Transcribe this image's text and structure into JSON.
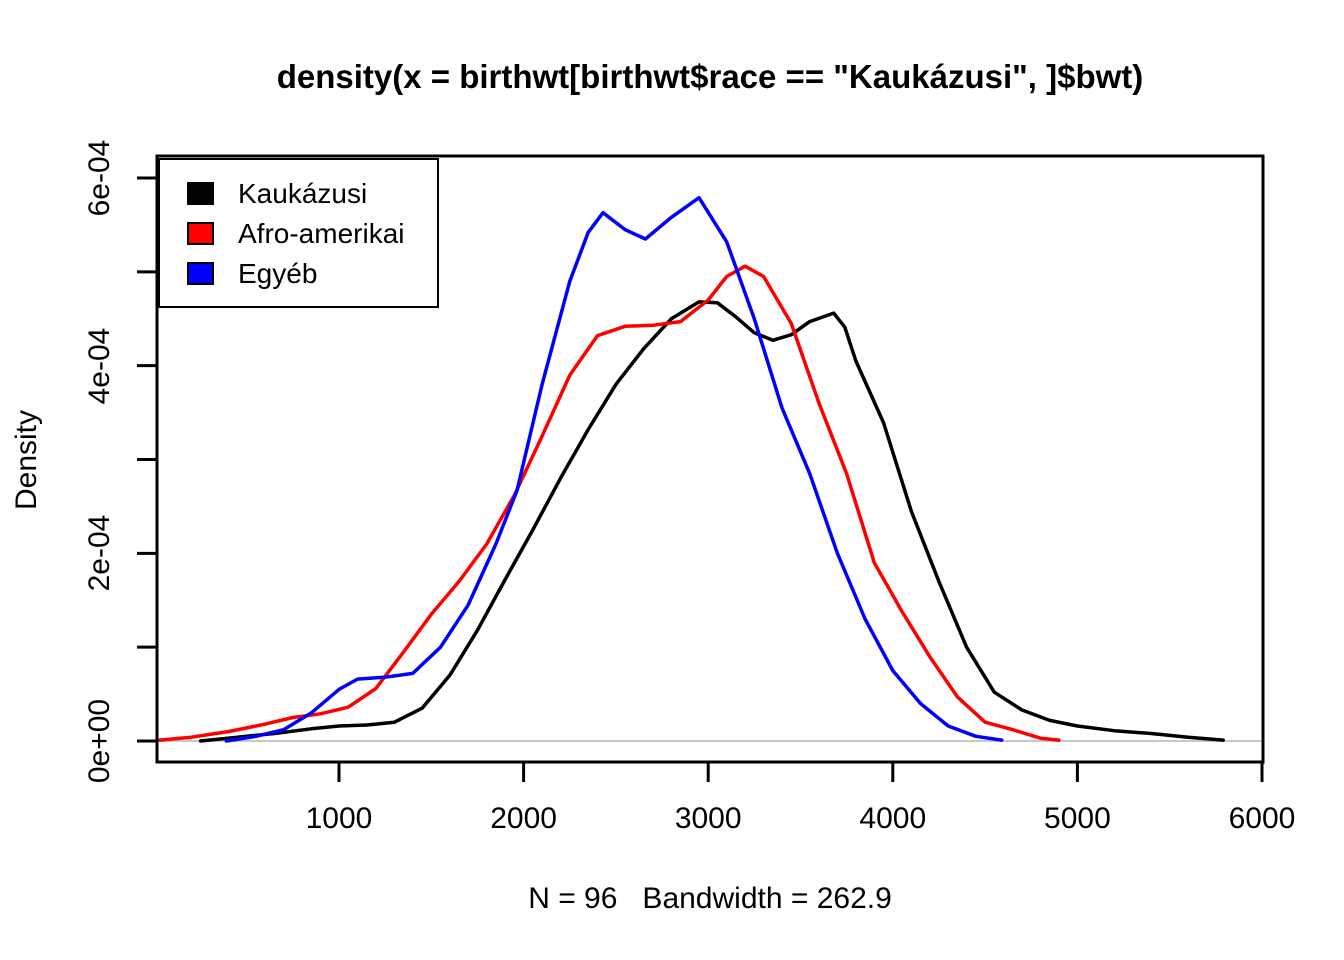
{
  "chart_data": {
    "type": "line",
    "title": "density(x = birthwt[birthwt$race == \"Kaukázusi\", ]$bwt)",
    "xlabel": "N = 96   Bandwidth = 262.9",
    "ylabel": "Density",
    "xlim": [
      14,
      6005
    ],
    "ylim": [
      0,
      0.00062
    ],
    "grid": false,
    "legend_position": "top-left",
    "x_ticks": [
      1000,
      2000,
      3000,
      4000,
      5000,
      6000
    ],
    "y_ticks": [
      {
        "value": 0.0,
        "label": "0e+00"
      },
      {
        "value": 0.0001,
        "label": ""
      },
      {
        "value": 0.0002,
        "label": "2e-04"
      },
      {
        "value": 0.0003,
        "label": ""
      },
      {
        "value": 0.0004,
        "label": "4e-04"
      },
      {
        "value": 0.0005,
        "label": ""
      },
      {
        "value": 0.0006,
        "label": "6e-04"
      }
    ],
    "zero_line_color": "#c8c8c8",
    "axis_color": "#000000",
    "series": [
      {
        "name": "Kaukázusi",
        "color": "#000000",
        "x": [
          250,
          450,
          650,
          850,
          1000,
          1150,
          1300,
          1450,
          1600,
          1750,
          1900,
          2050,
          2200,
          2350,
          2500,
          2650,
          2800,
          2950,
          3050,
          3150,
          3250,
          3350,
          3450,
          3550,
          3680,
          3740,
          3800,
          3950,
          4100,
          4250,
          4400,
          4550,
          4700,
          4850,
          5000,
          5200,
          5400,
          5600,
          5790
        ],
        "y": [
          0.0,
          4e-06,
          8e-06,
          1.3e-05,
          1.6e-05,
          1.7e-05,
          2e-05,
          3.5e-05,
          7e-05,
          0.000118,
          0.000172,
          0.000225,
          0.00028,
          0.000332,
          0.00038,
          0.000418,
          0.00045,
          0.000468,
          0.000467,
          0.000452,
          0.000435,
          0.000427,
          0.000433,
          0.000447,
          0.000456,
          0.000441,
          0.000405,
          0.000339,
          0.000245,
          0.00017,
          0.0001,
          5.2e-05,
          3.3e-05,
          2.2e-05,
          1.6e-05,
          1.1e-05,
          8e-06,
          4e-06,
          1e-06
        ]
      },
      {
        "name": "Afro-amerikai",
        "color": "#ff0000",
        "x": [
          30,
          200,
          400,
          600,
          750,
          900,
          1050,
          1200,
          1350,
          1500,
          1650,
          1800,
          1950,
          2100,
          2250,
          2400,
          2550,
          2700,
          2850,
          3000,
          3100,
          3200,
          3300,
          3450,
          3600,
          3750,
          3900,
          4050,
          4200,
          4350,
          4500,
          4650,
          4800,
          4900
        ],
        "y": [
          1e-06,
          4e-06,
          1e-05,
          1.8e-05,
          2.5e-05,
          2.9e-05,
          3.6e-05,
          5.6e-05,
          9.5e-05,
          0.000135,
          0.00017,
          0.00021,
          0.000262,
          0.000325,
          0.00039,
          0.000432,
          0.000442,
          0.000443,
          0.000447,
          0.00047,
          0.000495,
          0.000506,
          0.000495,
          0.000445,
          0.00036,
          0.000285,
          0.00019,
          0.000138,
          9e-05,
          4.7e-05,
          2e-05,
          1.2e-05,
          3e-06,
          1e-06
        ]
      },
      {
        "name": "Egyéb",
        "color": "#0000ff",
        "x": [
          390,
          550,
          700,
          850,
          1000,
          1100,
          1250,
          1400,
          1550,
          1700,
          1850,
          1964,
          2100,
          2250,
          2350,
          2430,
          2550,
          2660,
          2800,
          2950,
          3100,
          3250,
          3400,
          3550,
          3700,
          3850,
          4000,
          4150,
          4300,
          4450,
          4590
        ],
        "y": [
          0.0,
          5e-06,
          1.2e-05,
          3e-05,
          5.5e-05,
          6.6e-05,
          6.8e-05,
          7.2e-05,
          0.0001,
          0.000145,
          0.00021,
          0.000267,
          0.00038,
          0.00049,
          0.000542,
          0.000563,
          0.000545,
          0.000535,
          0.000558,
          0.000579,
          0.000532,
          0.00045,
          0.000355,
          0.000285,
          0.0002,
          0.00013,
          7.5e-05,
          4e-05,
          1.6e-05,
          5e-06,
          1e-06
        ]
      }
    ]
  },
  "legend": {
    "items": [
      {
        "label": "Kaukázusi",
        "color": "#000000"
      },
      {
        "label": "Afro-amerikai",
        "color": "#ff0000"
      },
      {
        "label": "Egyéb",
        "color": "#0000ff"
      }
    ]
  }
}
